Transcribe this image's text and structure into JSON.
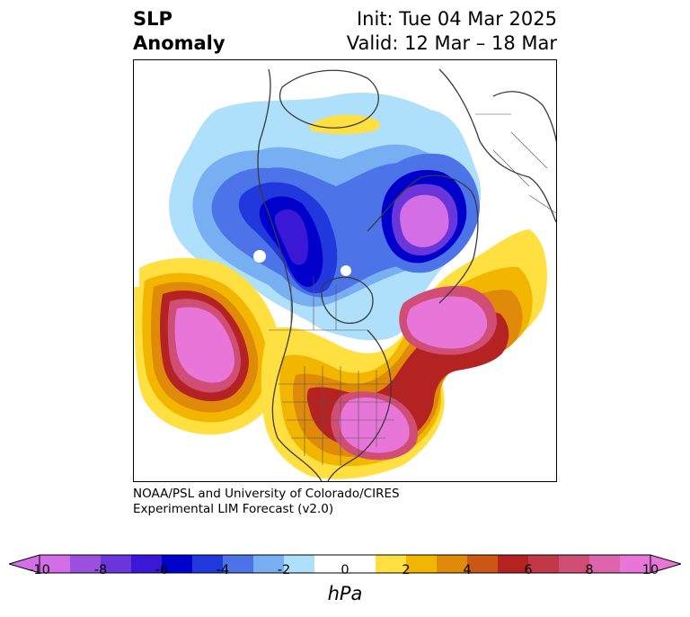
{
  "title": {
    "left_line1": "SLP",
    "left_line2": "Anomaly",
    "right_line1": "Init: Tue 04 Mar 2025",
    "right_line2": "Valid: 12 Mar – 18 Mar"
  },
  "credit": {
    "line1": "NOAA/PSL and University of Colorado/CIRES",
    "line2": "Experimental LIM Forecast (v2.0)"
  },
  "colorbar": {
    "unit": "hPa",
    "tick_labels": [
      "-10",
      "-8",
      "-6",
      "-4",
      "-2",
      "0",
      "2",
      "4",
      "6",
      "8",
      "10"
    ],
    "min": -10,
    "max": 10,
    "extend": "both",
    "colors": [
      "#d46ee6",
      "#9b50e0",
      "#6a36dc",
      "#3a18d6",
      "#0000cc",
      "#2038dc",
      "#4c74e8",
      "#78aef2",
      "#aee0fc",
      "#ffffff",
      "#ffffff",
      "#ffe040",
      "#f2b600",
      "#e08a0a",
      "#cc5616",
      "#b42222",
      "#c23848",
      "#d04e76",
      "#de64ae",
      "#e876d8"
    ],
    "bounds": [
      -10,
      -9,
      -8,
      -7,
      -6,
      -5,
      -4,
      -3,
      -2,
      -1,
      0,
      1,
      2,
      3,
      4,
      5,
      6,
      7,
      8,
      9,
      10
    ]
  }
}
